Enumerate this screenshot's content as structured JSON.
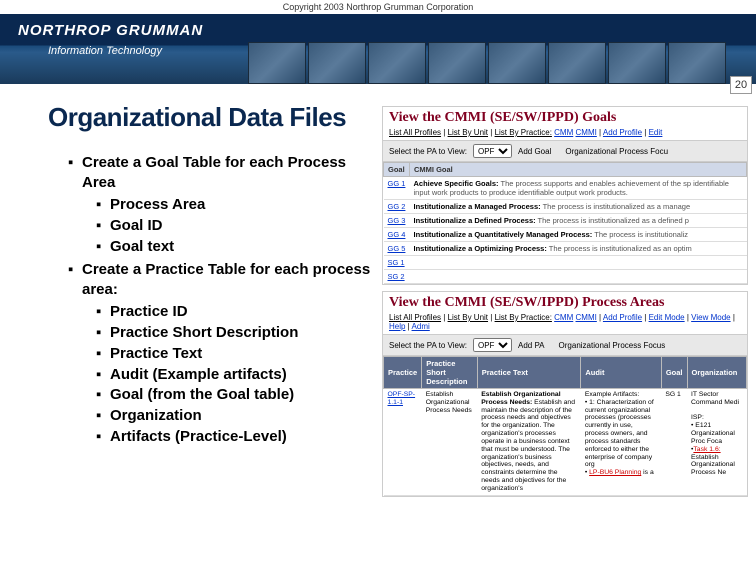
{
  "copyright": "Copyright 2003 Northrop Grumman Corporation",
  "logo": {
    "main": "NORTHROP GRUMMAN",
    "sub": "Information Technology"
  },
  "page_number": "20",
  "title": "Organizational Data Files",
  "bullets": [
    {
      "text": "Create a Goal Table for each Process Area",
      "sub": [
        "Process Area",
        "Goal ID",
        "Goal text"
      ]
    },
    {
      "text": "Create a Practice Table for each process area:",
      "sub": [
        "Practice ID",
        "Practice Short Description",
        "Practice Text",
        "Audit (Example artifacts)",
        "Goal (from the Goal table)",
        "Organization",
        "Artifacts (Practice-Level)"
      ]
    }
  ],
  "panel1": {
    "title": "View the CMMI (SE/SW/IPPD) Goals",
    "links_pre": "List All Profiles | List By Unit | List By Practice:",
    "links": [
      "CMM",
      "CMMI"
    ],
    "links_post": [
      "Add Profile",
      "Edit"
    ],
    "select_label": "Select the PA to View:",
    "select_value": "OPF",
    "add_link": "Add Goal",
    "context": "Organizational Process Focu",
    "th": [
      "Goal",
      "CMMI Goal"
    ],
    "rows": [
      {
        "id": "GG 1",
        "b": "Achieve Specific Goals:",
        "t": " The process supports and enables achievement of the sp identifiable input work products to produce identifiable output work products."
      },
      {
        "id": "GG 2",
        "b": "Institutionalize a Managed Process:",
        "t": " The process is institutionalized as a manage"
      },
      {
        "id": "GG 3",
        "b": "Institutionalize a Defined Process:",
        "t": " The process is institutionalized as a defined p"
      },
      {
        "id": "GG 4",
        "b": "Institutionalize a Quantitatively Managed Process:",
        "t": " The process is institutionaliz"
      },
      {
        "id": "GG 5",
        "b": "Institutionalize a Optimizing Process:",
        "t": " The process is institutionalized as an optim"
      },
      {
        "id": "SG 1",
        "b": "",
        "t": ""
      },
      {
        "id": "SG 2",
        "b": "",
        "t": ""
      }
    ]
  },
  "panel2": {
    "title": "View the CMMI (SE/SW/IPPD) Process Areas",
    "links_pre": "List All Profiles | List By Unit | List By Practice:",
    "links": [
      "CMM",
      "CMMI"
    ],
    "links_post": [
      "Add Profile",
      "Edit Mode",
      "View Mode",
      "Help",
      "Admi"
    ],
    "select_label": "Select the PA to View:",
    "select_value": "OPF",
    "add_link": "Add PA",
    "context": "Organizational Process Focus",
    "th": [
      "Practice",
      "Practice Short Description",
      "Practice Text",
      "Audit",
      "Goal",
      "Organization"
    ],
    "rows": [
      {
        "id": "OPF-SP-1.1-1",
        "short": "Establish Organizational Process Needs",
        "text": "Establish Organizational Process Needs: Establish and maintain the description of the process needs and objectives for the organization. The organization's processes operate in a business context that must be understood. The organization's business objectives, needs, and constraints determine the needs and objectives for the organization's",
        "audit": "Example Artifacts:\n• 1: Characterization of current organizational processes (processes currently in use, process owners, and process standards enforced to either the enterprise of company org",
        "auditred": "LP-BU6 Planning",
        "goal": "SG 1",
        "org": "IT Sector Command Medi\n\nISP:\n• E121 Organizational Proc Foca",
        "orgred": "Task 1.6:",
        "orgtail": " Establish Organizational Process Ne"
      }
    ]
  }
}
